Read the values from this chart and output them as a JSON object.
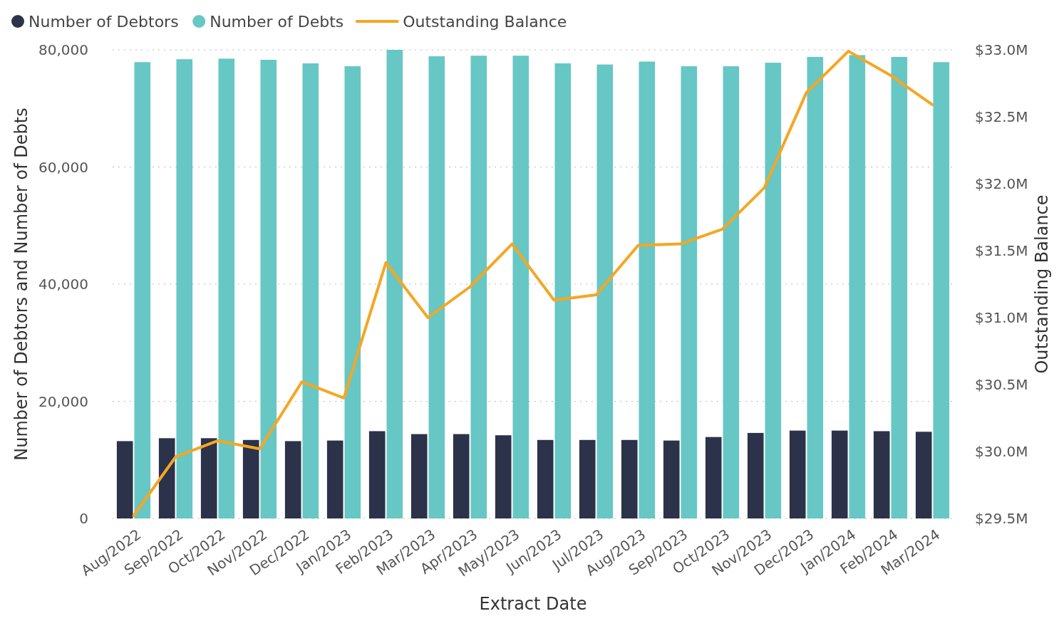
{
  "chart_data": {
    "type": "bar",
    "xlabel": "Extract Date",
    "ylabel": "Number of Debtors and Number of Debts",
    "y2label": "Outstanding Balance",
    "categories": [
      "Aug/2022",
      "Sep/2022",
      "Oct/2022",
      "Nov/2022",
      "Dec/2022",
      "Jan/2023",
      "Feb/2023",
      "Mar/2023",
      "Apr/2023",
      "May/2023",
      "Jun/2023",
      "Jul/2023",
      "Aug/2023",
      "Sep/2023",
      "Oct/2023",
      "Nov/2023",
      "Dec/2023",
      "Jan/2024",
      "Feb/2024",
      "Mar/2024"
    ],
    "series": [
      {
        "name": "Number of Debtors",
        "color": "#2b3249",
        "values": [
          13200,
          13700,
          13700,
          13400,
          13200,
          13300,
          14900,
          14400,
          14400,
          14200,
          13400,
          13400,
          13400,
          13300,
          13900,
          14600,
          15000,
          15000,
          14900,
          14800
        ]
      },
      {
        "name": "Number of Debts",
        "color": "#66c7c5",
        "values": [
          77900,
          78400,
          78500,
          78300,
          77700,
          77200,
          80000,
          78900,
          79000,
          79000,
          77700,
          77500,
          78000,
          77200,
          77200,
          77800,
          78800,
          79100,
          78800,
          77900
        ]
      },
      {
        "name": "Outstanding Balance",
        "type": "line",
        "axis": "y2",
        "color": "#f5a623",
        "values": [
          29.52,
          29.96,
          30.08,
          30.02,
          30.52,
          30.4,
          31.41,
          31.0,
          31.23,
          31.55,
          31.13,
          31.17,
          31.54,
          31.55,
          31.66,
          31.97,
          32.68,
          32.99,
          32.81,
          32.59
        ]
      }
    ],
    "ylim": [
      0,
      80000
    ],
    "yticks": [
      0,
      {
        "value": 20000,
        "label": "20,000"
      },
      {
        "value": 40000,
        "label": "40,000"
      },
      {
        "value": 60000,
        "label": "60,000"
      },
      {
        "value": 80000,
        "label": "80,000"
      }
    ],
    "y2lim": [
      29.5,
      33.0
    ],
    "y2ticks": [
      {
        "value": 29.5,
        "label": "$29.5M"
      },
      {
        "value": 30.0,
        "label": "$30.0M"
      },
      {
        "value": 30.5,
        "label": "$30.5M"
      },
      {
        "value": 31.0,
        "label": "$31.0M"
      },
      {
        "value": 31.5,
        "label": "$31.5M"
      },
      {
        "value": 32.0,
        "label": "$32.0M"
      },
      {
        "value": 32.5,
        "label": "$32.5M"
      },
      {
        "value": 33.0,
        "label": "$33.0M"
      }
    ],
    "grid": "y",
    "legend": "top left",
    "marker": "none",
    "line_style": "solid"
  }
}
